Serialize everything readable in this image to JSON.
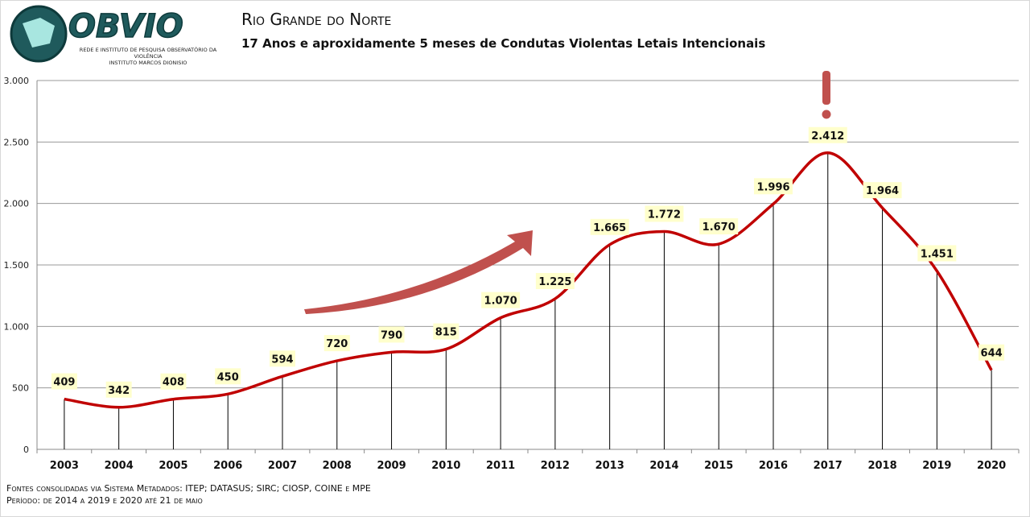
{
  "header": {
    "title": "Rio Grande do Norte",
    "subtitle": "17 Anos e aproxidamente 5 meses de Condutas Violentas Letais Intencionais",
    "logo_text": "OBVIO",
    "logo_caption_1": "REDE E INSTITUTO DE PESQUISA OBSERVATÓRIO DA VIOLÊNCIA",
    "logo_caption_2": "INSTITUTO MARCOS DIONISIO"
  },
  "footer": {
    "sources": "Fontes consolidadas via Sistema Metadados: ITEP; DATASUS; SIRC; CIOSP, COINE e MPE",
    "period": "Período: de 2014 a 2019 e 2020 até 21 de maio"
  },
  "chart_data": {
    "type": "line",
    "title": "Rio Grande do Norte",
    "categories": [
      "2003",
      "2004",
      "2005",
      "2006",
      "2007",
      "2008",
      "2009",
      "2010",
      "2011",
      "2012",
      "2013",
      "2014",
      "2015",
      "2016",
      "2017",
      "2018",
      "2019",
      "2020"
    ],
    "values": [
      409,
      342,
      408,
      450,
      594,
      720,
      790,
      815,
      1070,
      1225,
      1665,
      1772,
      1670,
      1996,
      2412,
      1964,
      1451,
      644
    ],
    "labels": [
      "409",
      "342",
      "408",
      "450",
      "594",
      "720",
      "790",
      "815",
      "1.070",
      "1.225",
      "1.665",
      "1.772",
      "1.670",
      "1.996",
      "2.412",
      "1.964",
      "1.451",
      "644"
    ],
    "yticks": [
      0,
      500,
      1000,
      1500,
      2000,
      2500,
      3000
    ],
    "ytick_labels": [
      "0",
      "500",
      "1.000",
      "1.500",
      "2.000",
      "2.500",
      "3.000"
    ],
    "ylim": [
      0,
      3000
    ],
    "grid": true,
    "annotations": [
      "!"
    ],
    "colors": {
      "line": "#c00000",
      "label_bg": "#ffffcc",
      "arrow": "#c0504d"
    }
  }
}
